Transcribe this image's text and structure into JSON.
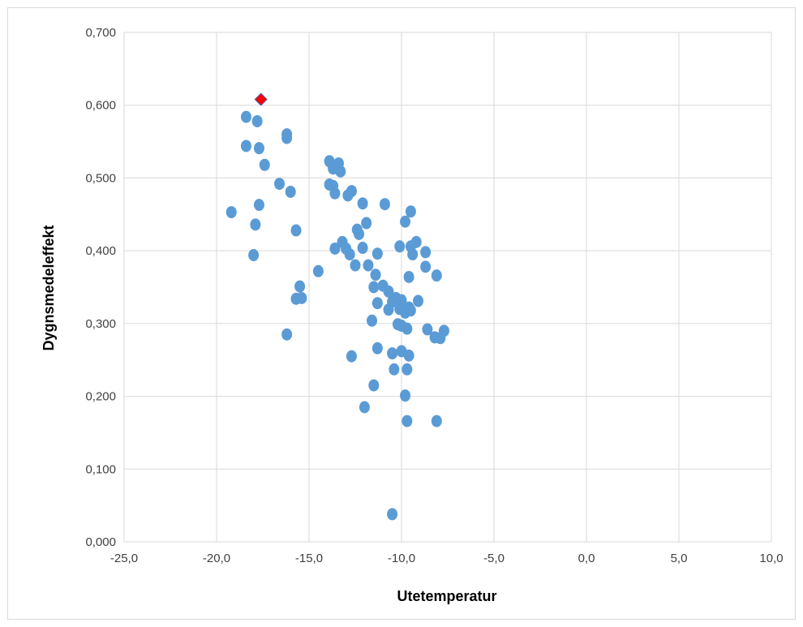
{
  "chart_data": {
    "type": "scatter",
    "title": "",
    "xlabel": "Utetemperatur",
    "ylabel": "Dygnsmedeleffekt",
    "xlim": [
      -25,
      10
    ],
    "ylim": [
      0,
      0.7
    ],
    "x_ticks": [
      -25,
      -20,
      -15,
      -10,
      -5,
      0,
      5,
      10
    ],
    "y_ticks": [
      0,
      0.1,
      0.2,
      0.3,
      0.4,
      0.5,
      0.6,
      0.7
    ],
    "x_tick_labels": [
      "-25,0",
      "-20,0",
      "-15,0",
      "-10,0",
      "-5,0",
      "0,0",
      "5,0",
      "10,0"
    ],
    "y_tick_labels": [
      "0,000",
      "0,100",
      "0,200",
      "0,300",
      "0,400",
      "0,500",
      "0,600",
      "0,700"
    ],
    "grid": "vertical and horizontal major gridlines",
    "legend": "none",
    "colors": {
      "points": "#5b9bd5",
      "highlight": "#ff0000",
      "highlight_edge": "#4472c4",
      "grid": "#d9d9d9"
    },
    "series": [
      {
        "marker": "circle",
        "points": [
          [
            -18.4,
            0.584
          ],
          [
            -18.4,
            0.544
          ],
          [
            -17.8,
            0.578
          ],
          [
            -17.7,
            0.541
          ],
          [
            -17.4,
            0.518
          ],
          [
            -16.2,
            0.56
          ],
          [
            -16.2,
            0.555
          ],
          [
            -19.2,
            0.453
          ],
          [
            -17.7,
            0.463
          ],
          [
            -17.9,
            0.436
          ],
          [
            -18.0,
            0.394
          ],
          [
            -16.6,
            0.492
          ],
          [
            -16.0,
            0.481
          ],
          [
            -15.7,
            0.428
          ],
          [
            -15.5,
            0.351
          ],
          [
            -15.7,
            0.334
          ],
          [
            -15.4,
            0.335
          ],
          [
            -16.2,
            0.285
          ],
          [
            -14.5,
            0.372
          ],
          [
            -13.9,
            0.523
          ],
          [
            -13.4,
            0.52
          ],
          [
            -13.7,
            0.513
          ],
          [
            -13.3,
            0.509
          ],
          [
            -13.9,
            0.491
          ],
          [
            -13.7,
            0.489
          ],
          [
            -13.6,
            0.479
          ],
          [
            -12.9,
            0.476
          ],
          [
            -12.7,
            0.482
          ],
          [
            -12.1,
            0.465
          ],
          [
            -11.9,
            0.438
          ],
          [
            -12.4,
            0.429
          ],
          [
            -12.3,
            0.423
          ],
          [
            -13.2,
            0.412
          ],
          [
            -13.6,
            0.403
          ],
          [
            -13.0,
            0.403
          ],
          [
            -12.8,
            0.395
          ],
          [
            -12.1,
            0.404
          ],
          [
            -12.5,
            0.38
          ],
          [
            -11.8,
            0.38
          ],
          [
            -11.3,
            0.396
          ],
          [
            -11.4,
            0.367
          ],
          [
            -11.5,
            0.35
          ],
          [
            -11.0,
            0.352
          ],
          [
            -11.3,
            0.328
          ],
          [
            -11.6,
            0.304
          ],
          [
            -10.7,
            0.344
          ],
          [
            -10.7,
            0.319
          ],
          [
            -10.5,
            0.33
          ],
          [
            -10.3,
            0.335
          ],
          [
            -10.1,
            0.32
          ],
          [
            -10.0,
            0.332
          ],
          [
            -9.8,
            0.315
          ],
          [
            -9.6,
            0.322
          ],
          [
            -9.5,
            0.318
          ],
          [
            -10.2,
            0.299
          ],
          [
            -10.0,
            0.297
          ],
          [
            -9.7,
            0.293
          ],
          [
            -10.9,
            0.464
          ],
          [
            -9.5,
            0.454
          ],
          [
            -9.8,
            0.44
          ],
          [
            -10.1,
            0.406
          ],
          [
            -9.5,
            0.406
          ],
          [
            -9.2,
            0.412
          ],
          [
            -9.4,
            0.395
          ],
          [
            -8.7,
            0.398
          ],
          [
            -8.7,
            0.378
          ],
          [
            -9.6,
            0.364
          ],
          [
            -8.1,
            0.366
          ],
          [
            -9.1,
            0.331
          ],
          [
            -8.6,
            0.292
          ],
          [
            -8.2,
            0.281
          ],
          [
            -7.9,
            0.28
          ],
          [
            -7.7,
            0.29
          ],
          [
            -12.7,
            0.255
          ],
          [
            -11.3,
            0.266
          ],
          [
            -10.5,
            0.259
          ],
          [
            -10.0,
            0.262
          ],
          [
            -9.6,
            0.256
          ],
          [
            -10.4,
            0.237
          ],
          [
            -9.7,
            0.237
          ],
          [
            -11.5,
            0.215
          ],
          [
            -9.8,
            0.201
          ],
          [
            -12.0,
            0.185
          ],
          [
            -9.7,
            0.166
          ],
          [
            -8.1,
            0.166
          ],
          [
            -10.5,
            0.038
          ]
        ]
      },
      {
        "marker": "diamond",
        "points": [
          [
            -17.6,
            0.608
          ]
        ]
      }
    ]
  }
}
